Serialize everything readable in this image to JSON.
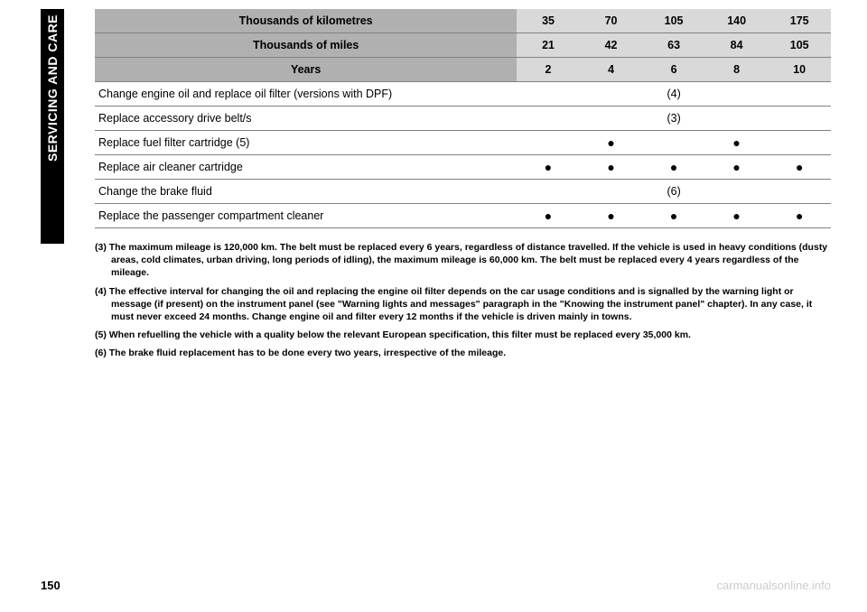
{
  "sidebar_label": "SERVICING AND CARE",
  "table": {
    "headers": {
      "km": "Thousands of kilometres",
      "miles": "Thousands of miles",
      "years": "Years"
    },
    "km_values": [
      "35",
      "70",
      "105",
      "140",
      "175"
    ],
    "miles_values": [
      "21",
      "42",
      "63",
      "84",
      "105"
    ],
    "years_values": [
      "2",
      "4",
      "6",
      "8",
      "10"
    ],
    "rows": [
      {
        "label": "Change engine oil and replace oil filter (versions with DPF)",
        "span_note": "(4)"
      },
      {
        "label": "Replace accessory drive belt/s",
        "span_note": "(3)"
      },
      {
        "label": "Replace fuel filter cartridge (5)",
        "dots": [
          "",
          "●",
          "",
          "●",
          ""
        ]
      },
      {
        "label": "Replace air cleaner cartridge",
        "dots": [
          "●",
          "●",
          "●",
          "●",
          "●"
        ]
      },
      {
        "label": "Change the brake fluid",
        "span_note": "(6)"
      },
      {
        "label": "Replace the passenger compartment cleaner",
        "dots": [
          "●",
          "●",
          "●",
          "●",
          "●"
        ]
      }
    ]
  },
  "footnotes": [
    "(3) The maximum mileage is 120,000 km. The belt must be replaced every 6 years, regardless of distance travelled. If the vehicle is used in heavy conditions (dusty areas, cold climates, urban driving, long periods of idling), the maximum mileage is 60,000 km. The belt must be replaced every 4 years regardless of the mileage.",
    "(4) The effective interval for changing the oil and replacing the engine oil filter depends on the car usage conditions and is signalled by the warning light or message (if present) on the instrument panel (see \"Warning lights and messages\" paragraph in the \"Knowing the instrument panel\" chapter). In any case, it must never exceed 24 months. Change engine oil and filter every 12 months if the vehicle is driven mainly in towns.",
    "(5) When refuelling the vehicle with a quality below the relevant European specification, this filter must be replaced every 35,000 km.",
    "(6) The brake fluid replacement has to be done every two years, irrespective of the mileage."
  ],
  "page_number": "150",
  "watermark": "carmanualsonline.info",
  "colors": {
    "header_dark": "#b0b0b0",
    "header_light": "#d9d9d9",
    "border": "#808080",
    "watermark": "#cccccc"
  }
}
